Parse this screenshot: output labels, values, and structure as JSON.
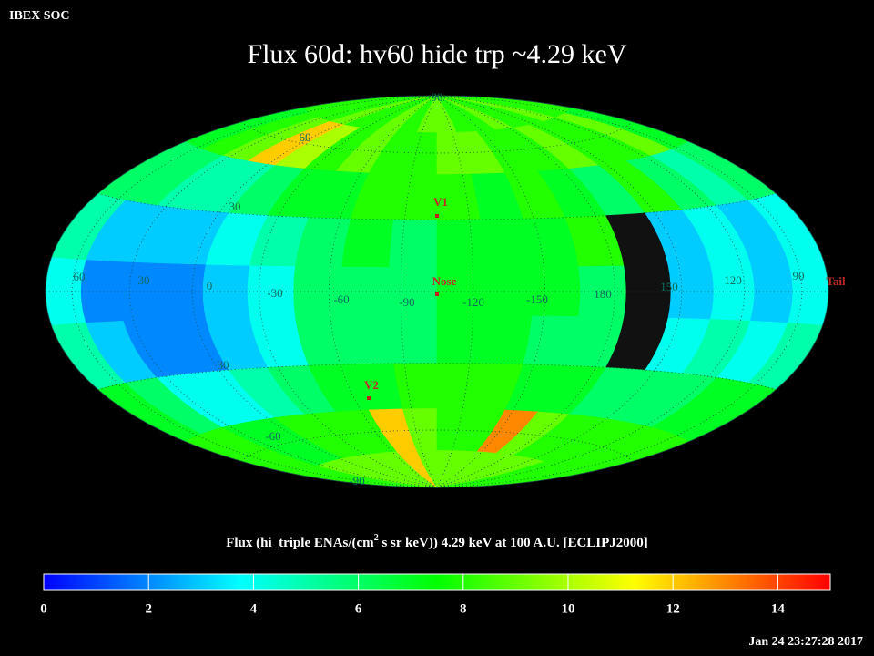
{
  "header": "IBEX SOC",
  "timestamp": "Jan 24 23:27:28 2017",
  "chart_data": {
    "type": "heatmap",
    "title": "Flux   60d: hv60 hide trp ~4.29 keV",
    "values": [
      [
        8,
        8,
        8,
        9,
        8,
        8,
        9,
        8,
        9,
        9,
        8,
        8,
        9,
        8,
        8,
        9,
        8,
        8
      ],
      [
        7,
        8,
        9,
        12,
        10,
        8,
        9,
        8,
        8,
        9,
        9,
        8,
        8,
        9,
        8,
        8,
        9,
        7
      ],
      [
        6,
        6,
        5,
        5,
        6,
        7,
        7,
        8,
        8,
        8,
        7,
        8,
        7,
        6,
        8,
        6,
        5,
        6
      ],
      [
        5,
        3,
        3,
        3,
        4,
        5,
        6,
        7,
        6,
        7,
        7,
        7,
        8,
        null,
        3,
        4,
        3,
        4
      ],
      [
        4,
        2,
        2,
        2,
        3,
        4,
        6,
        6,
        6,
        7,
        7,
        7,
        6,
        null,
        3,
        4,
        3,
        4
      ],
      [
        5,
        3,
        2,
        2,
        3,
        4,
        6,
        6,
        6,
        7,
        7,
        6,
        6,
        null,
        4,
        5,
        4,
        5
      ],
      [
        7,
        6,
        4,
        4,
        5,
        6,
        7,
        7,
        8,
        8,
        8,
        7,
        7,
        6,
        6,
        6,
        7,
        7
      ],
      [
        8,
        8,
        7,
        7,
        8,
        8,
        8,
        12,
        9,
        8,
        8,
        13,
        9,
        8,
        8,
        8,
        8,
        8
      ],
      [
        8,
        8,
        9,
        9,
        9,
        9,
        9,
        12,
        9,
        9,
        9,
        9,
        9,
        9,
        9,
        8,
        8,
        8
      ]
    ],
    "colormap": [
      "#0000ff",
      "#00ffff",
      "#00ff00",
      "#ffff00",
      "#ff0000"
    ],
    "missing_color": "#111111",
    "lat_labels": [
      90,
      60,
      30,
      30,
      -60,
      -90
    ],
    "lon_labels": [
      60,
      30,
      0,
      -30,
      -60,
      -90,
      -120,
      -150,
      180,
      150,
      120,
      90
    ],
    "markers": [
      "V1",
      "Nose",
      "V2",
      "Tail"
    ],
    "colorbar": {
      "label_parts": [
        "Flux (hi_triple ENAs/(cm",
        "2",
        " s sr keV))  4.29 keV at 100 A.U. [ECLIPJ2000]"
      ],
      "lim": [
        0,
        15
      ],
      "ticks": [
        0,
        2,
        4,
        6,
        8,
        10,
        12,
        14
      ]
    }
  }
}
